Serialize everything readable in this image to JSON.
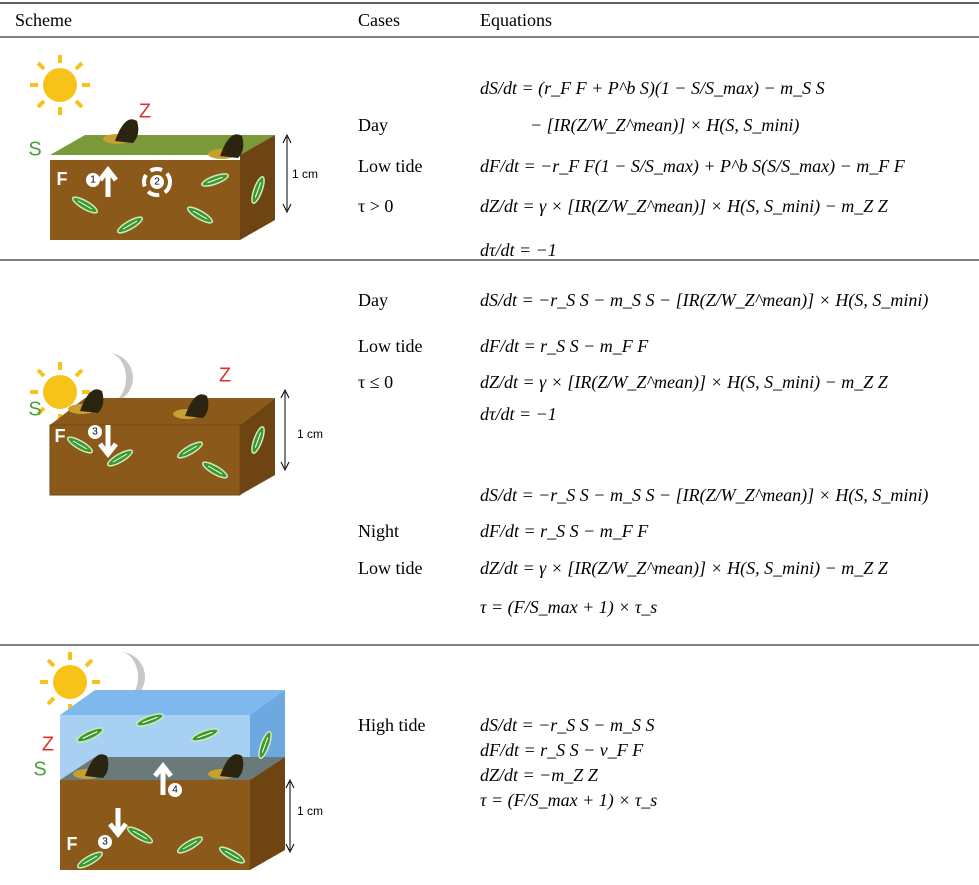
{
  "table": {
    "headers": [
      "Scheme",
      "Cases",
      "Equations"
    ],
    "rows": [
      {
        "scheme": {
          "labels": [
            "Z",
            "S",
            "F",
            "1",
            "2",
            "1 cm"
          ]
        },
        "blocks": [
          {
            "cases": [
              "Day",
              "Low tide",
              "τ > 0"
            ],
            "equations": [
              "dS/dt = (r_F F + P^b S)(1 − S/S_max) − m_S S",
              "− [IR(Z/W_Z^mean)] × H(S, S_mini)",
              "dF/dt = −r_F F(1 − S/S_max) + P^b S(S/S_max) − m_F F",
              "dZ/dt = γ × [IR(Z/W_Z^mean)] × H(S, S_mini) − m_Z Z",
              "dτ/dt = −1"
            ]
          }
        ]
      },
      {
        "scheme": {
          "labels": [
            "Z",
            "S",
            "F",
            "3",
            "1 cm"
          ]
        },
        "blocks": [
          {
            "cases": [
              "Day",
              "Low tide",
              "τ ≤ 0"
            ],
            "equations": [
              "dS/dt = −r_S S − m_S S − [IR(Z/W_Z^mean)] × H(S, S_mini)",
              "dF/dt = r_S S − m_F F",
              "dZ/dt = γ × [IR(Z/W_Z^mean)] × H(S, S_mini) − m_Z Z",
              "dτ/dt = −1"
            ]
          },
          {
            "cases": [
              "Night",
              "Low tide"
            ],
            "equations": [
              "dS/dt = −r_S S − m_S S − [IR(Z/W_Z^mean)] × H(S, S_mini)",
              "dF/dt = r_S S − m_F F",
              "dZ/dt = γ × [IR(Z/W_Z^mean)] × H(S, S_mini) − m_Z Z",
              "τ = (F/S_max + 1) × τ_s"
            ]
          }
        ]
      },
      {
        "scheme": {
          "labels": [
            "Z",
            "S",
            "F",
            "3",
            "4",
            "1 cm"
          ]
        },
        "blocks": [
          {
            "cases": [
              "High tide"
            ],
            "equations": [
              "dS/dt = −r_S S − m_S S",
              "dF/dt = r_S S − ν_F F",
              "dZ/dt = −m_Z Z",
              "τ = (F/S_max + 1) × τ_s"
            ]
          }
        ]
      }
    ]
  }
}
